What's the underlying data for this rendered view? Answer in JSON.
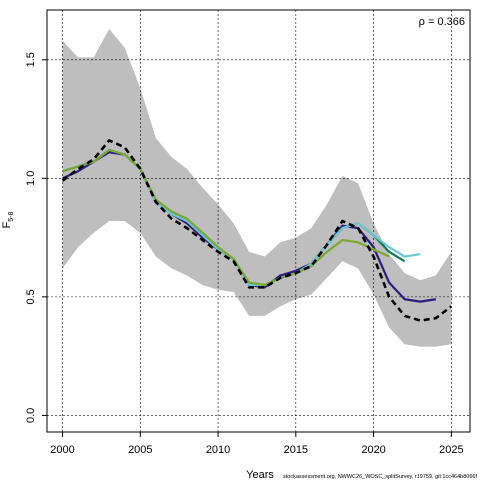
{
  "chart_data": {
    "type": "line",
    "xlabel": "Years",
    "ylabel": "F",
    "ylabel_sub": "5-8",
    "xlim": [
      1999,
      2026.2
    ],
    "ylim": [
      -0.07,
      1.71
    ],
    "x_ticks": [
      2000,
      2005,
      2010,
      2015,
      2020,
      2025
    ],
    "y_ticks": [
      0.0,
      0.5,
      1.0,
      1.5
    ],
    "y_tick_labels": [
      "0.0",
      "0.5",
      "1.0",
      "1.5"
    ],
    "grid": true,
    "annotation": "ρ = 0.366",
    "footer": "stockassessment.org, NWWC26_WOSC_splitSurvey, r19759, git:1cc464b8066f",
    "band": {
      "fill": "#bebebe",
      "x": [
        2000,
        2001,
        2002,
        2003,
        2004,
        2005,
        2006,
        2007,
        2008,
        2009,
        2010,
        2011,
        2012,
        2013,
        2014,
        2015,
        2016,
        2017,
        2018,
        2019,
        2020,
        2021,
        2022,
        2023,
        2024,
        2025
      ],
      "upper": [
        1.58,
        1.51,
        1.51,
        1.63,
        1.55,
        1.38,
        1.17,
        1.09,
        1.04,
        0.96,
        0.89,
        0.81,
        0.69,
        0.67,
        0.73,
        0.75,
        0.79,
        0.89,
        1.01,
        0.98,
        0.81,
        0.68,
        0.6,
        0.57,
        0.59,
        0.69
      ],
      "lower": [
        0.62,
        0.71,
        0.77,
        0.82,
        0.82,
        0.77,
        0.67,
        0.62,
        0.59,
        0.55,
        0.53,
        0.52,
        0.42,
        0.42,
        0.46,
        0.49,
        0.51,
        0.58,
        0.65,
        0.62,
        0.51,
        0.37,
        0.3,
        0.29,
        0.29,
        0.3
      ]
    },
    "series": [
      {
        "color": "#000000",
        "dashed": true,
        "x": [
          2000,
          2001,
          2002,
          2003,
          2004,
          2005,
          2006,
          2007,
          2008,
          2009,
          2010,
          2011,
          2012,
          2013,
          2014,
          2015,
          2016,
          2017,
          2018,
          2019,
          2020,
          2021,
          2022,
          2023,
          2024,
          2025
        ],
        "values": [
          0.99,
          1.04,
          1.08,
          1.16,
          1.13,
          1.04,
          0.9,
          0.83,
          0.79,
          0.74,
          0.69,
          0.65,
          0.54,
          0.54,
          0.58,
          0.6,
          0.63,
          0.72,
          0.82,
          0.79,
          0.67,
          0.5,
          0.42,
          0.4,
          0.41,
          0.46
        ]
      },
      {
        "color": "#2e1a80",
        "dashed": false,
        "x": [
          2000,
          2001,
          2002,
          2003,
          2004,
          2005,
          2006,
          2007,
          2008,
          2009,
          2010,
          2011,
          2012,
          2013,
          2014,
          2015,
          2016,
          2017,
          2018,
          2019,
          2020,
          2021,
          2022,
          2023,
          2024
        ],
        "values": [
          1.0,
          1.03,
          1.07,
          1.11,
          1.1,
          1.04,
          0.9,
          0.85,
          0.81,
          0.75,
          0.7,
          0.66,
          0.55,
          0.54,
          0.59,
          0.61,
          0.64,
          0.72,
          0.8,
          0.79,
          0.71,
          0.56,
          0.49,
          0.48,
          0.49
        ]
      },
      {
        "color": "#0a7a5c",
        "dashed": false,
        "x": [
          2000,
          2001,
          2002,
          2003,
          2004,
          2005,
          2006,
          2007,
          2008,
          2009,
          2010,
          2011,
          2012,
          2013,
          2014,
          2015,
          2016,
          2017,
          2018,
          2019,
          2020,
          2021,
          2022
        ],
        "values": [
          1.03,
          1.05,
          1.07,
          1.12,
          1.1,
          1.04,
          0.9,
          0.85,
          0.82,
          0.76,
          0.7,
          0.66,
          0.55,
          0.55,
          0.58,
          0.6,
          0.64,
          0.72,
          0.79,
          0.81,
          0.76,
          0.69,
          0.65
        ]
      },
      {
        "color": "#6cc7d1",
        "dashed": false,
        "x": [
          2000,
          2001,
          2002,
          2003,
          2004,
          2005,
          2006,
          2007,
          2008,
          2009,
          2010,
          2011,
          2012,
          2013,
          2014,
          2015,
          2016,
          2017,
          2018,
          2019,
          2020,
          2021,
          2022,
          2023
        ],
        "values": [
          1.03,
          1.05,
          1.07,
          1.12,
          1.1,
          1.04,
          0.9,
          0.85,
          0.82,
          0.76,
          0.7,
          0.66,
          0.55,
          0.55,
          0.58,
          0.6,
          0.64,
          0.72,
          0.79,
          0.81,
          0.76,
          0.71,
          0.67,
          0.68
        ]
      },
      {
        "color": "#7aa832",
        "dashed": false,
        "x": [
          2000,
          2001,
          2002,
          2003,
          2004,
          2005,
          2006,
          2007,
          2008,
          2009,
          2010,
          2011,
          2012,
          2013,
          2014,
          2015,
          2016,
          2017,
          2018,
          2019,
          2020,
          2021
        ],
        "values": [
          1.03,
          1.05,
          1.07,
          1.12,
          1.1,
          1.04,
          0.91,
          0.86,
          0.83,
          0.77,
          0.71,
          0.66,
          0.56,
          0.55,
          0.58,
          0.6,
          0.63,
          0.69,
          0.74,
          0.73,
          0.7,
          0.67
        ]
      }
    ]
  }
}
